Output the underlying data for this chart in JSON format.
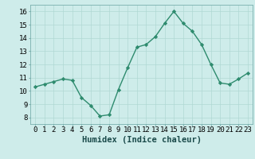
{
  "x": [
    0,
    1,
    2,
    3,
    4,
    5,
    6,
    7,
    8,
    9,
    10,
    11,
    12,
    13,
    14,
    15,
    16,
    17,
    18,
    19,
    20,
    21,
    22,
    23
  ],
  "y": [
    10.3,
    10.5,
    10.7,
    10.9,
    10.8,
    9.5,
    8.9,
    8.1,
    8.2,
    10.1,
    11.75,
    13.3,
    13.5,
    14.1,
    15.1,
    16.0,
    15.1,
    14.5,
    13.5,
    12.0,
    10.6,
    10.5,
    10.9,
    11.35
  ],
  "line_color": "#2e8b6e",
  "marker": "D",
  "markersize": 2.2,
  "linewidth": 1.0,
  "background_color": "#ceecea",
  "grid_color": "#b0d8d4",
  "xlabel": "Humidex (Indice chaleur)",
  "xlim": [
    -0.5,
    23.5
  ],
  "ylim": [
    7.5,
    16.5
  ],
  "xticks": [
    0,
    1,
    2,
    3,
    4,
    5,
    6,
    7,
    8,
    9,
    10,
    11,
    12,
    13,
    14,
    15,
    16,
    17,
    18,
    19,
    20,
    21,
    22,
    23
  ],
  "yticks": [
    8,
    9,
    10,
    11,
    12,
    13,
    14,
    15,
    16
  ],
  "xlabel_fontsize": 7.5,
  "tick_fontsize": 6.5
}
